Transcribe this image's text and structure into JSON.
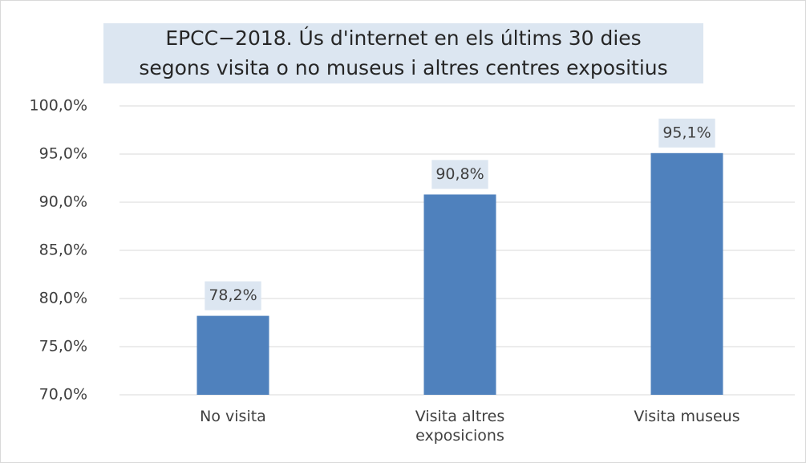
{
  "chart_data": {
    "type": "bar",
    "title": [
      "EPCC−2018. Ús d'internet en els últims 30 dies",
      "segons visita o no museus i altres centres expositius"
    ],
    "categories": [
      "No visita",
      "Visita altres exposicions",
      "Visita museus"
    ],
    "values": [
      78.2,
      90.8,
      95.1
    ],
    "value_labels": [
      "78,2%",
      "90,8%",
      "95,1%"
    ],
    "color": "#4f81bd",
    "ylim": [
      70,
      100
    ],
    "yticks": [
      {
        "value": 70,
        "label": "70,0%"
      },
      {
        "value": 75,
        "label": "75,0%"
      },
      {
        "value": 80,
        "label": "80,0%"
      },
      {
        "value": 85,
        "label": "85,0%"
      },
      {
        "value": 90,
        "label": "90,0%"
      },
      {
        "value": 95,
        "label": "95,0%"
      },
      {
        "value": 100,
        "label": "100,0%"
      }
    ],
    "grid": true
  }
}
